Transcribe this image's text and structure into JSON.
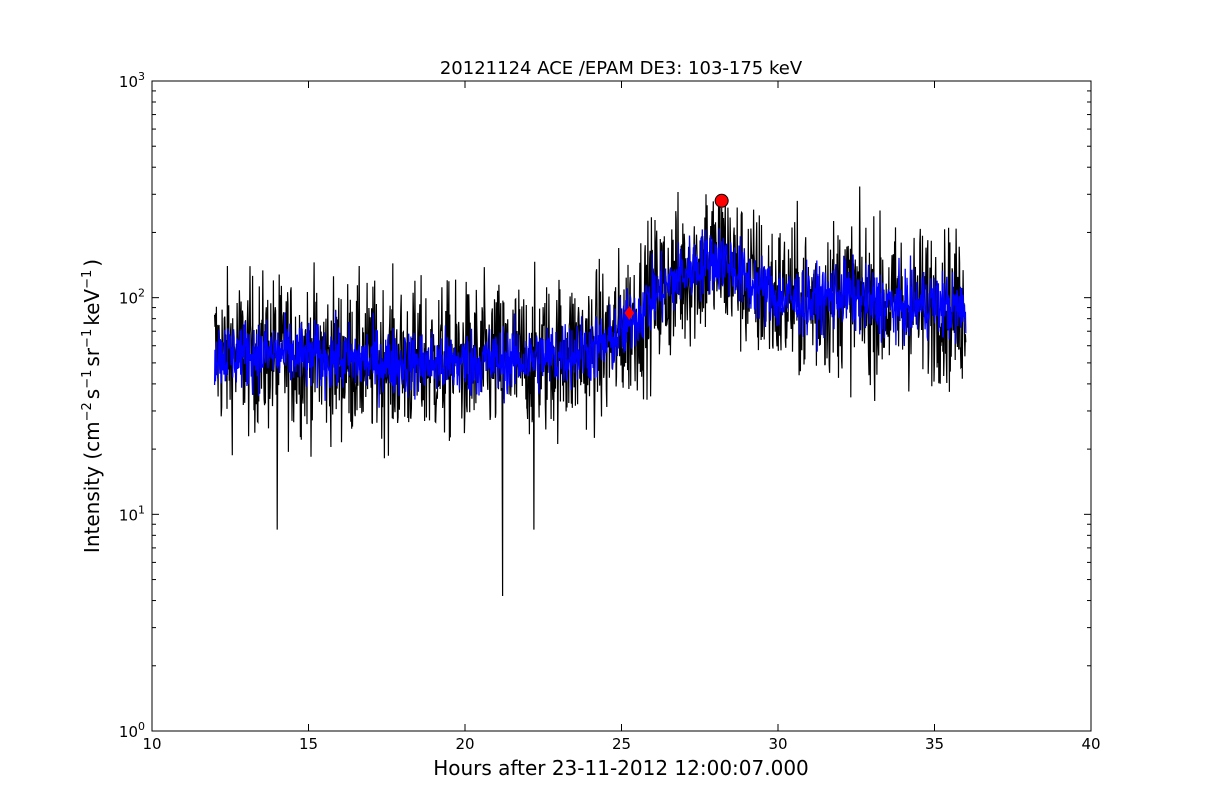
{
  "chart_data": {
    "type": "line",
    "title": "20121124 ACE /EPAM DE3: 103-175 keV",
    "xlabel": "Hours after 23-11-2012 12:00:07.000",
    "ylabel_parts": {
      "prefix": "Intensity (cm",
      "exp1": "−2",
      "s": "s",
      "exp2": "−1",
      "sr": "sr",
      "exp3": "−1",
      "kev": "keV",
      "exp4": "−1",
      "suffix": ")"
    },
    "xlim": [
      10,
      40
    ],
    "ylim": [
      1,
      1000
    ],
    "y_scale": "log",
    "x_ticks": [
      {
        "value": 10,
        "label": "10"
      },
      {
        "value": 15,
        "label": "15"
      },
      {
        "value": 20,
        "label": "20"
      },
      {
        "value": 25,
        "label": "25"
      },
      {
        "value": 30,
        "label": "30"
      },
      {
        "value": 35,
        "label": "35"
      },
      {
        "value": 40,
        "label": "40"
      }
    ],
    "y_ticks": [
      {
        "value": 1,
        "base": "10",
        "exp": "0"
      },
      {
        "value": 10,
        "base": "10",
        "exp": "1"
      },
      {
        "value": 100,
        "base": "10",
        "exp": "2"
      },
      {
        "value": 1000,
        "base": "10",
        "exp": "3"
      }
    ],
    "grid": false,
    "series": [
      {
        "color": "#000000",
        "x_range": [
          12.0,
          36.0
        ],
        "baseline_profile": [
          [
            12.0,
            55
          ],
          [
            14.0,
            55
          ],
          [
            16.0,
            52
          ],
          [
            18.0,
            50
          ],
          [
            20.0,
            50
          ],
          [
            22.0,
            52
          ],
          [
            23.5,
            56
          ],
          [
            24.5,
            60
          ],
          [
            25.2,
            75
          ],
          [
            26.0,
            100
          ],
          [
            27.0,
            130
          ],
          [
            27.8,
            150
          ],
          [
            28.3,
            150
          ],
          [
            29.0,
            120
          ],
          [
            30.0,
            100
          ],
          [
            31.0,
            95
          ],
          [
            32.0,
            105
          ],
          [
            33.0,
            95
          ],
          [
            34.0,
            90
          ],
          [
            35.0,
            95
          ],
          [
            36.0,
            85
          ]
        ],
        "spread_dex": 0.18,
        "notable_points": [
          {
            "x": 14.0,
            "y": 8.5
          },
          {
            "x": 21.2,
            "y": 4.2
          },
          {
            "x": 22.2,
            "y": 8.5
          },
          {
            "x": 27.7,
            "y": 300
          },
          {
            "x": 28.2,
            "y": 260
          }
        ]
      },
      {
        "color": "#0000ff",
        "x_range": [
          12.0,
          36.0
        ],
        "baseline_profile": [
          [
            12.0,
            55
          ],
          [
            14.0,
            55
          ],
          [
            16.0,
            52
          ],
          [
            18.0,
            50
          ],
          [
            20.0,
            50
          ],
          [
            22.0,
            52
          ],
          [
            23.5,
            56
          ],
          [
            24.5,
            60
          ],
          [
            25.2,
            75
          ],
          [
            26.0,
            100
          ],
          [
            27.0,
            130
          ],
          [
            27.8,
            150
          ],
          [
            28.3,
            150
          ],
          [
            29.0,
            120
          ],
          [
            30.0,
            100
          ],
          [
            31.0,
            95
          ],
          [
            32.0,
            105
          ],
          [
            33.0,
            95
          ],
          [
            34.0,
            90
          ],
          [
            35.0,
            95
          ],
          [
            36.0,
            85
          ]
        ],
        "spread_dex": 0.08
      }
    ],
    "markers": [
      {
        "shape": "diamond",
        "x": 25.25,
        "y": 85,
        "color": "#ff0000"
      },
      {
        "shape": "circle",
        "x": 28.2,
        "y": 280,
        "color": "#ff0000"
      }
    ]
  }
}
